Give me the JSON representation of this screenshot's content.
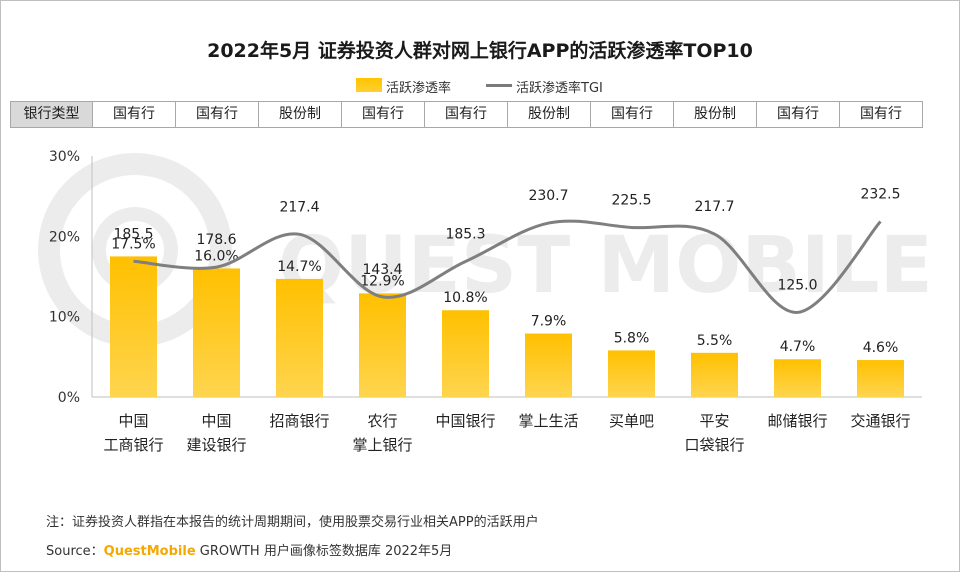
{
  "title": "2022年5月 证券投资人群对网上银行APP的活跃渗透率TOP10",
  "legend": {
    "bar": "活跃渗透率",
    "line": "活跃渗透率TGI"
  },
  "type_row": {
    "header": "银行类型",
    "types": [
      "国有行",
      "国有行",
      "股份制",
      "国有行",
      "国有行",
      "股份制",
      "国有行",
      "股份制",
      "国有行",
      "国有行"
    ]
  },
  "watermark": "QUEST MOBILE",
  "colors": {
    "bar_top": "#ffc000",
    "bar_bottom": "#ffd54f",
    "line": "#7f7f7f",
    "brand": "#f5a800"
  },
  "chart_data": {
    "type": "bar",
    "title": "2022年5月 证券投资人群对网上银行APP的活跃渗透率TOP10",
    "categories": [
      [
        "中国",
        "工商银行"
      ],
      [
        "中国",
        "建设银行"
      ],
      [
        "招商银行"
      ],
      [
        "农行",
        "掌上银行"
      ],
      [
        "中国银行"
      ],
      [
        "掌上生活"
      ],
      [
        "买单吧"
      ],
      [
        "平安",
        "口袋银行"
      ],
      [
        "邮储银行"
      ],
      [
        "交通银行"
      ]
    ],
    "y_ticks": [
      "0%",
      "10%",
      "20%",
      "30%"
    ],
    "ylim": [
      0,
      30
    ],
    "series": [
      {
        "name": "活跃渗透率",
        "type": "bar",
        "axis": "left",
        "values": [
          17.5,
          16.0,
          14.7,
          12.9,
          10.8,
          7.9,
          5.8,
          5.5,
          4.7,
          4.6
        ],
        "labels": [
          "17.5%",
          "16.0%",
          "14.7%",
          "12.9%",
          "10.8%",
          "7.9%",
          "5.8%",
          "5.5%",
          "4.7%",
          "4.6%"
        ]
      },
      {
        "name": "活跃渗透率TGI",
        "type": "line",
        "axis": "right",
        "values": [
          185.5,
          178.6,
          217.4,
          143.4,
          185.3,
          230.7,
          225.5,
          217.7,
          125.0,
          232.5
        ],
        "labels": [
          "185.5",
          "178.6",
          "217.4",
          "143.4",
          "185.3",
          "230.7",
          "225.5",
          "217.7",
          "125.0",
          "232.5"
        ]
      }
    ]
  },
  "notes": {
    "note": "注：证券投资人群指在本报告的统计周期期间，使用股票交易行业相关APP的活跃用户",
    "source_prefix": "Source：",
    "source_brand": "QuestMobile",
    "source_rest": " GROWTH 用户画像标签数据库 2022年5月"
  }
}
